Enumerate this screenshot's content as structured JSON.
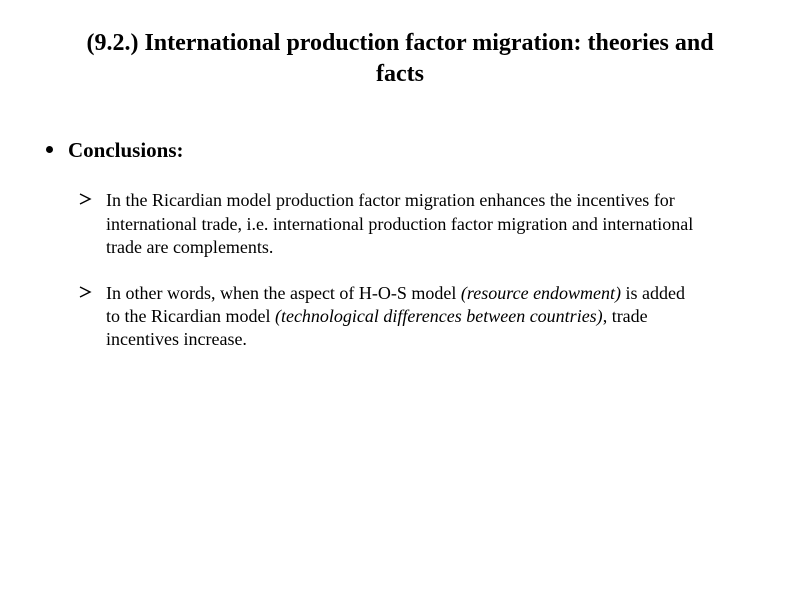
{
  "title": "(9.2.) International production factor migration: theories and facts",
  "heading": "Conclusions:",
  "points": [
    {
      "segments": [
        {
          "text": "In the Ricardian model production factor migration enhances the incentives for  international trade, i.e. international production factor migration and international trade are complements.",
          "italic": false
        }
      ]
    },
    {
      "segments": [
        {
          "text": "In other words, when the aspect of H-O-S model ",
          "italic": false
        },
        {
          "text": "(resource endowment)",
          "italic": true
        },
        {
          "text": " is added to the Ricardian model ",
          "italic": false
        },
        {
          "text": "(technological differences between countries)",
          "italic": true
        },
        {
          "text": ", trade incentives increase.",
          "italic": false
        }
      ]
    }
  ],
  "colors": {
    "background": "#ffffff",
    "text": "#000000"
  },
  "fonts": {
    "title_size": 24,
    "heading_size": 21,
    "body_size": 18
  }
}
